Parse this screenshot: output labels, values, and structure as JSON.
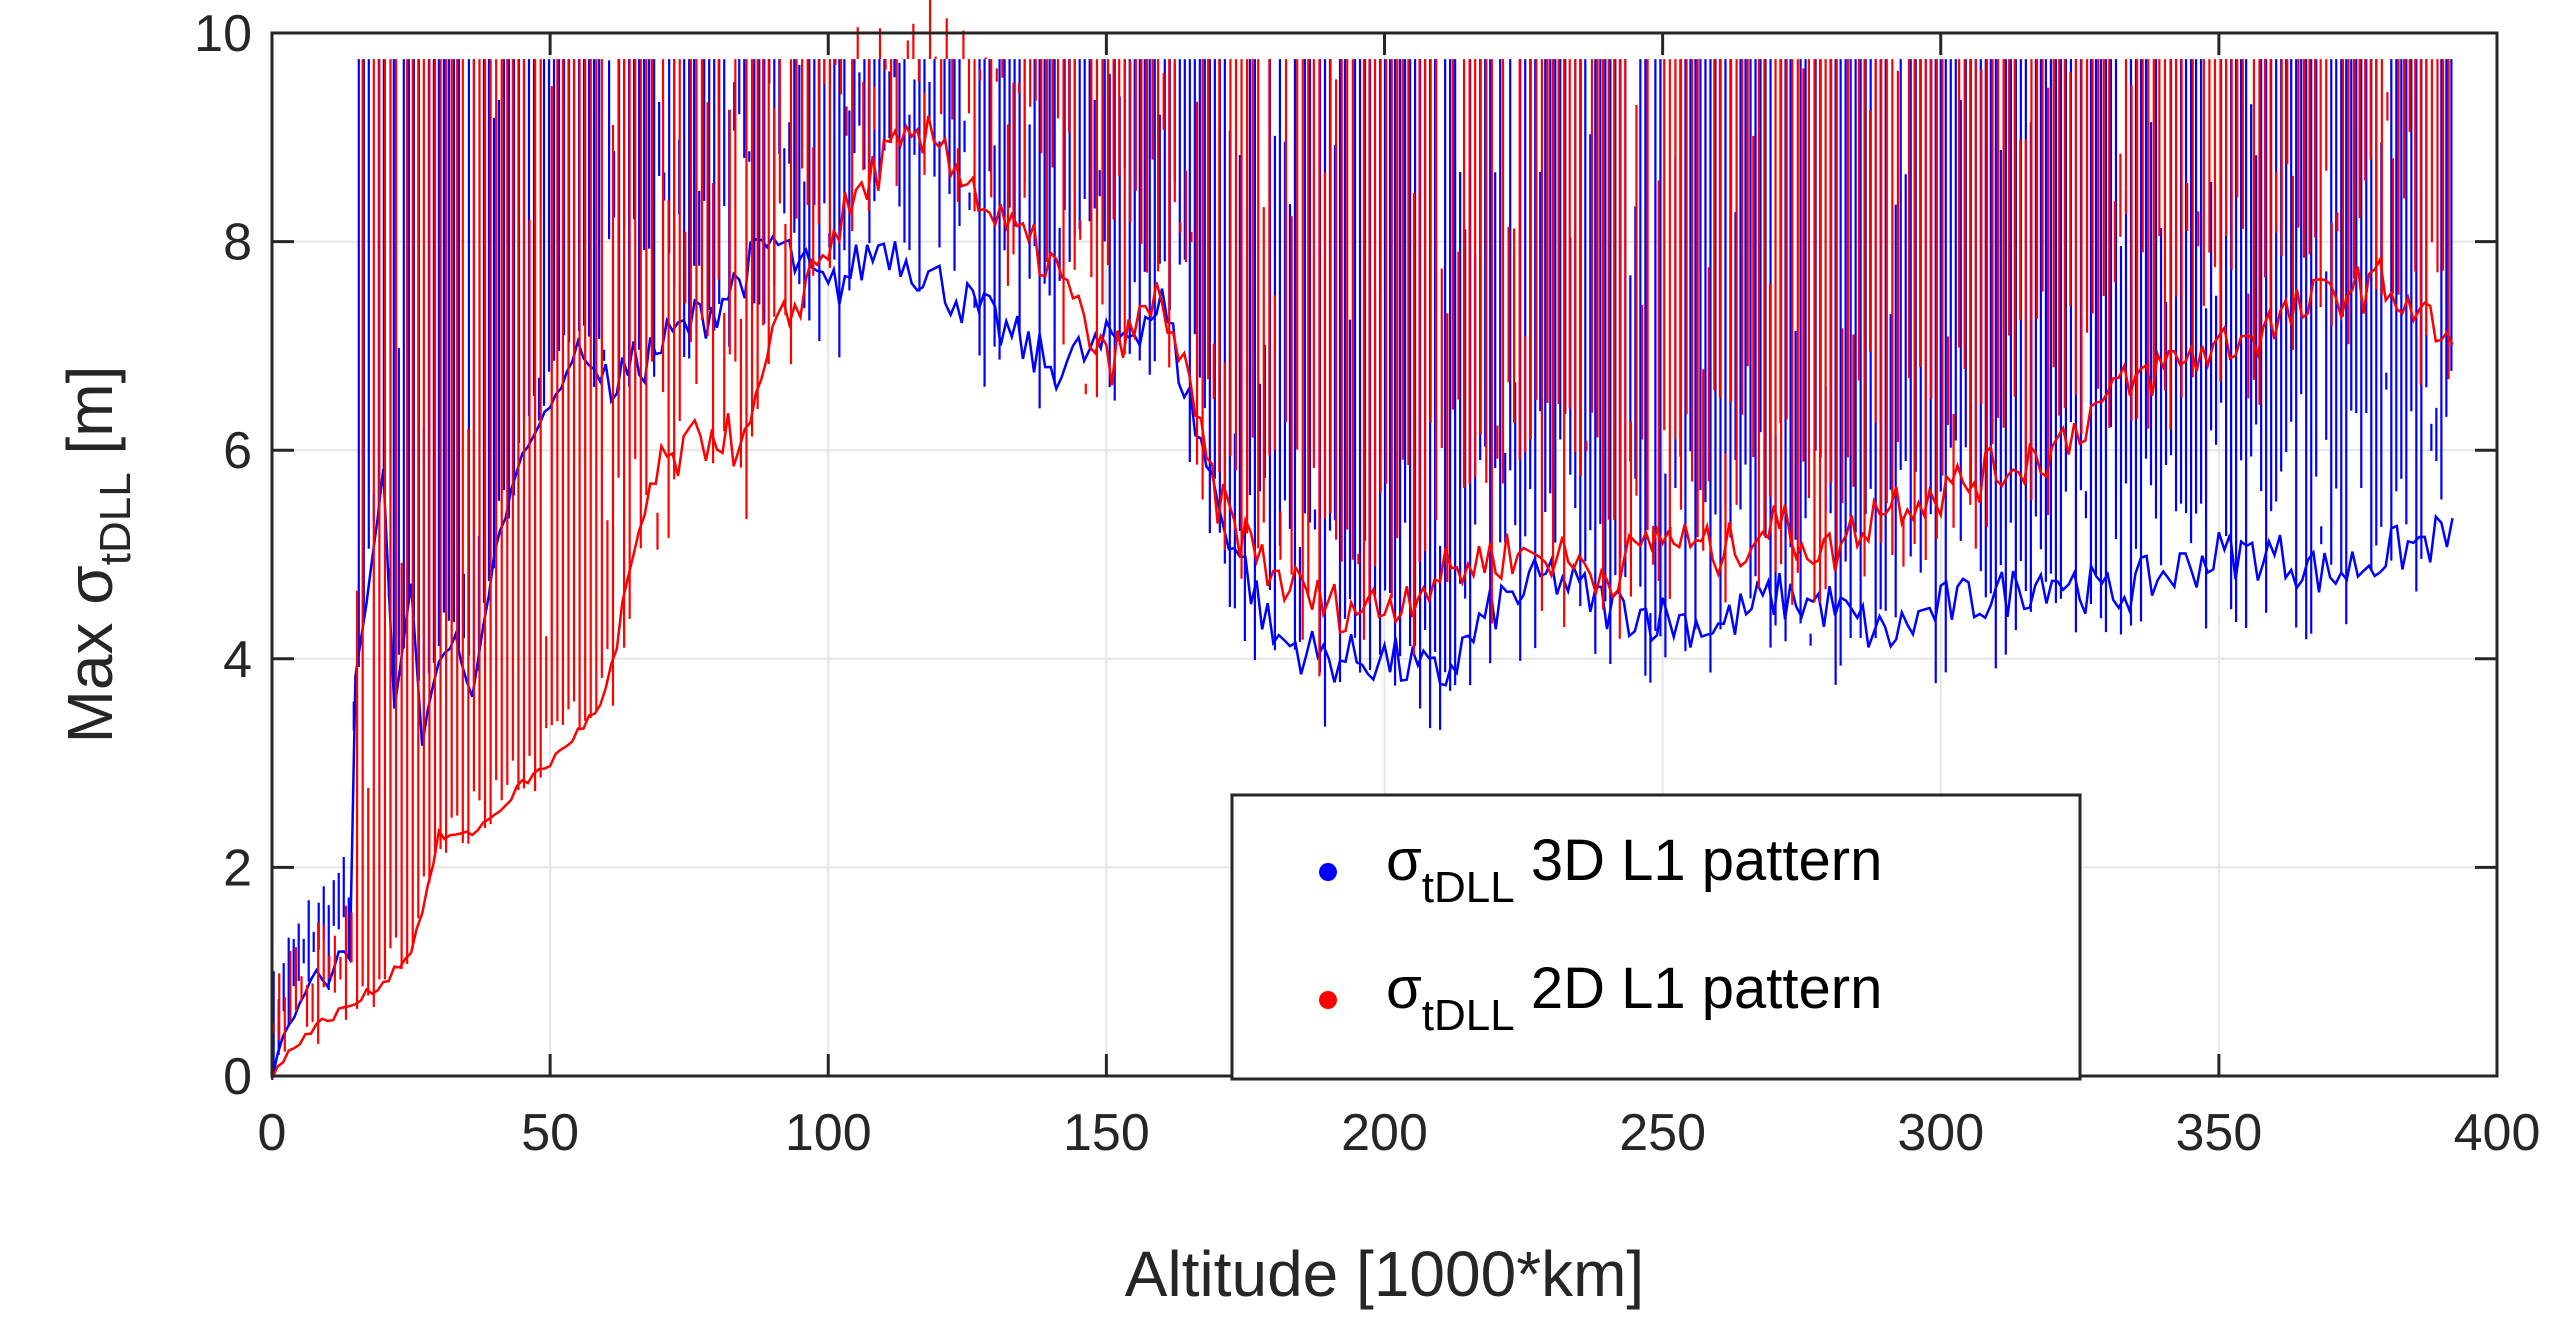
{
  "chart_data": {
    "type": "scatter",
    "title": "",
    "xlabel": "Altitude [1000*km]",
    "ylabel": {
      "prefix": "Max σ",
      "subscript": "tDLL",
      "suffix": " [m]"
    },
    "xlim": [
      0,
      400
    ],
    "ylim": [
      0,
      10
    ],
    "xticks": [
      0,
      50,
      100,
      150,
      200,
      250,
      300,
      350,
      400
    ],
    "yticks": [
      0,
      2,
      4,
      6,
      8,
      10
    ],
    "grid": true,
    "legend_position": "bottom-center-right",
    "colors": {
      "blue": "#0000ff",
      "red": "#ff0000",
      "axis": "#262626",
      "grid": "#e6e6e6"
    },
    "series": [
      {
        "label": {
          "symbol": "σ",
          "subscript": "tDLL",
          "text": " 3D L1 pattern"
        },
        "color": "#0000ff",
        "envelope": [
          [
            0,
            0
          ],
          [
            2,
            0.35
          ],
          [
            4,
            0.6
          ],
          [
            6,
            0.8
          ],
          [
            8,
            1.0
          ],
          [
            10,
            0.9
          ],
          [
            12,
            1.2
          ],
          [
            14,
            1.1
          ],
          [
            15,
            3.8
          ],
          [
            17,
            4.5
          ],
          [
            20,
            5.8
          ],
          [
            22,
            3.5
          ],
          [
            25,
            4.7
          ],
          [
            27,
            3.2
          ],
          [
            30,
            4.0
          ],
          [
            33,
            4.2
          ],
          [
            36,
            3.6
          ],
          [
            40,
            5.0
          ],
          [
            45,
            6.0
          ],
          [
            50,
            6.4
          ],
          [
            55,
            7.0
          ],
          [
            60,
            6.6
          ],
          [
            70,
            7.0
          ],
          [
            80,
            7.4
          ],
          [
            90,
            8.0
          ],
          [
            100,
            7.5
          ],
          [
            110,
            8.0
          ],
          [
            120,
            7.6
          ],
          [
            130,
            7.2
          ],
          [
            140,
            6.8
          ],
          [
            150,
            7.0
          ],
          [
            160,
            7.4
          ],
          [
            170,
            5.5
          ],
          [
            180,
            4.2
          ],
          [
            190,
            4.0
          ],
          [
            200,
            4.0
          ],
          [
            210,
            3.8
          ],
          [
            220,
            4.5
          ],
          [
            230,
            4.8
          ],
          [
            240,
            4.5
          ],
          [
            250,
            4.4
          ],
          [
            260,
            4.3
          ],
          [
            270,
            4.6
          ],
          [
            280,
            4.5
          ],
          [
            290,
            4.2
          ],
          [
            300,
            4.5
          ],
          [
            310,
            4.6
          ],
          [
            320,
            4.8
          ],
          [
            330,
            4.6
          ],
          [
            340,
            4.8
          ],
          [
            350,
            5.0
          ],
          [
            360,
            5.0
          ],
          [
            370,
            4.8
          ],
          [
            380,
            5.0
          ],
          [
            392,
            5.2
          ]
        ]
      },
      {
        "label": {
          "symbol": "σ",
          "subscript": "tDLL",
          "text": " 2D L1 pattern"
        },
        "color": "#ff0000",
        "envelope": [
          [
            0,
            0
          ],
          [
            5,
            0.35
          ],
          [
            10,
            0.55
          ],
          [
            15,
            0.7
          ],
          [
            20,
            0.9
          ],
          [
            25,
            1.2
          ],
          [
            28,
            1.8
          ],
          [
            30,
            2.3
          ],
          [
            35,
            2.3
          ],
          [
            40,
            2.5
          ],
          [
            45,
            2.8
          ],
          [
            50,
            3.0
          ],
          [
            55,
            3.3
          ],
          [
            60,
            3.6
          ],
          [
            62,
            4.0
          ],
          [
            65,
            5.0
          ],
          [
            68,
            5.6
          ],
          [
            70,
            5.8
          ],
          [
            75,
            6.0
          ],
          [
            80,
            6.2
          ],
          [
            85,
            6.0
          ],
          [
            90,
            7.0
          ],
          [
            100,
            8.0
          ],
          [
            110,
            8.8
          ],
          [
            120,
            9.0
          ],
          [
            130,
            8.2
          ],
          [
            140,
            7.8
          ],
          [
            150,
            6.8
          ],
          [
            160,
            7.5
          ],
          [
            170,
            5.5
          ],
          [
            180,
            4.8
          ],
          [
            190,
            4.5
          ],
          [
            200,
            4.5
          ],
          [
            210,
            4.8
          ],
          [
            220,
            5.0
          ],
          [
            230,
            5.0
          ],
          [
            240,
            4.8
          ],
          [
            250,
            5.2
          ],
          [
            260,
            5.0
          ],
          [
            270,
            5.3
          ],
          [
            280,
            5.0
          ],
          [
            290,
            5.5
          ],
          [
            300,
            5.6
          ],
          [
            310,
            5.8
          ],
          [
            320,
            6.0
          ],
          [
            330,
            6.5
          ],
          [
            340,
            6.8
          ],
          [
            350,
            7.0
          ],
          [
            360,
            7.2
          ],
          [
            370,
            7.5
          ],
          [
            380,
            7.6
          ],
          [
            392,
            7.0
          ]
        ]
      }
    ]
  }
}
